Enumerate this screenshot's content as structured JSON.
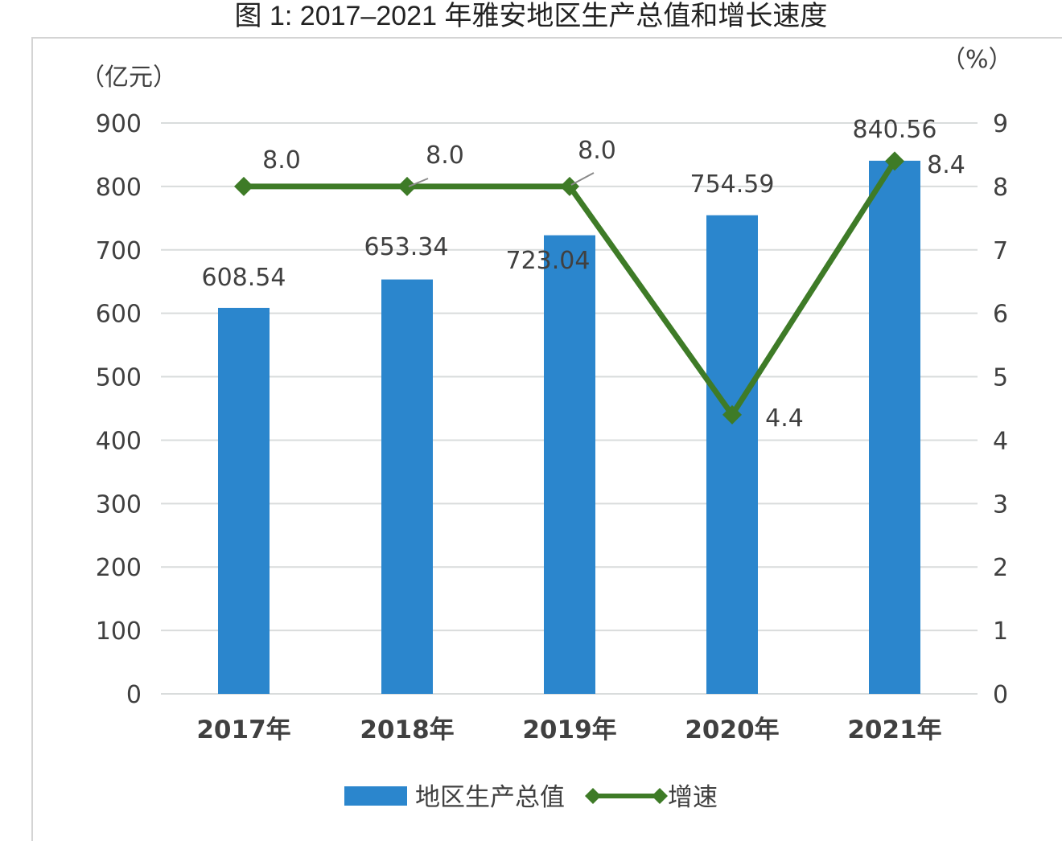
{
  "title": "图 1: 2017–2021 年雅安地区生产总值和增长速度",
  "chart_data": {
    "type": "bar+line",
    "title": "图 1: 2017–2021 年雅安地区生产总值和增长速度",
    "categories": [
      "2017年",
      "2018年",
      "2019年",
      "2020年",
      "2021年"
    ],
    "series": [
      {
        "name": "地区生产总值",
        "type": "bar",
        "axis": "left",
        "color": "#2b86cd",
        "values": [
          608.54,
          653.34,
          723.04,
          754.59,
          840.56
        ],
        "labels": [
          "608.54",
          "653.34",
          "723.04",
          "754.59",
          "840.56"
        ]
      },
      {
        "name": "增速",
        "type": "line",
        "axis": "right",
        "color": "#3e7b27",
        "marker": "diamond",
        "values": [
          8.0,
          8.0,
          8.0,
          4.4,
          8.4
        ],
        "labels": [
          "8.0",
          "8.0",
          "8.0",
          "4.4",
          "8.4"
        ]
      }
    ],
    "ylabel_left": "（亿元）",
    "ylabel_right": "（%）",
    "ylim_left": [
      0,
      900
    ],
    "ylim_right": [
      0,
      9
    ],
    "yticks_left": [
      "0",
      "100",
      "200",
      "300",
      "400",
      "500",
      "600",
      "700",
      "800",
      "900"
    ],
    "yticks_right": [
      "0",
      "1",
      "2",
      "3",
      "4",
      "5",
      "6",
      "7",
      "8",
      "9"
    ],
    "grid": true,
    "legend_position": "bottom"
  },
  "legend": {
    "bar_label": "地区生产总值",
    "line_label": "增速"
  }
}
